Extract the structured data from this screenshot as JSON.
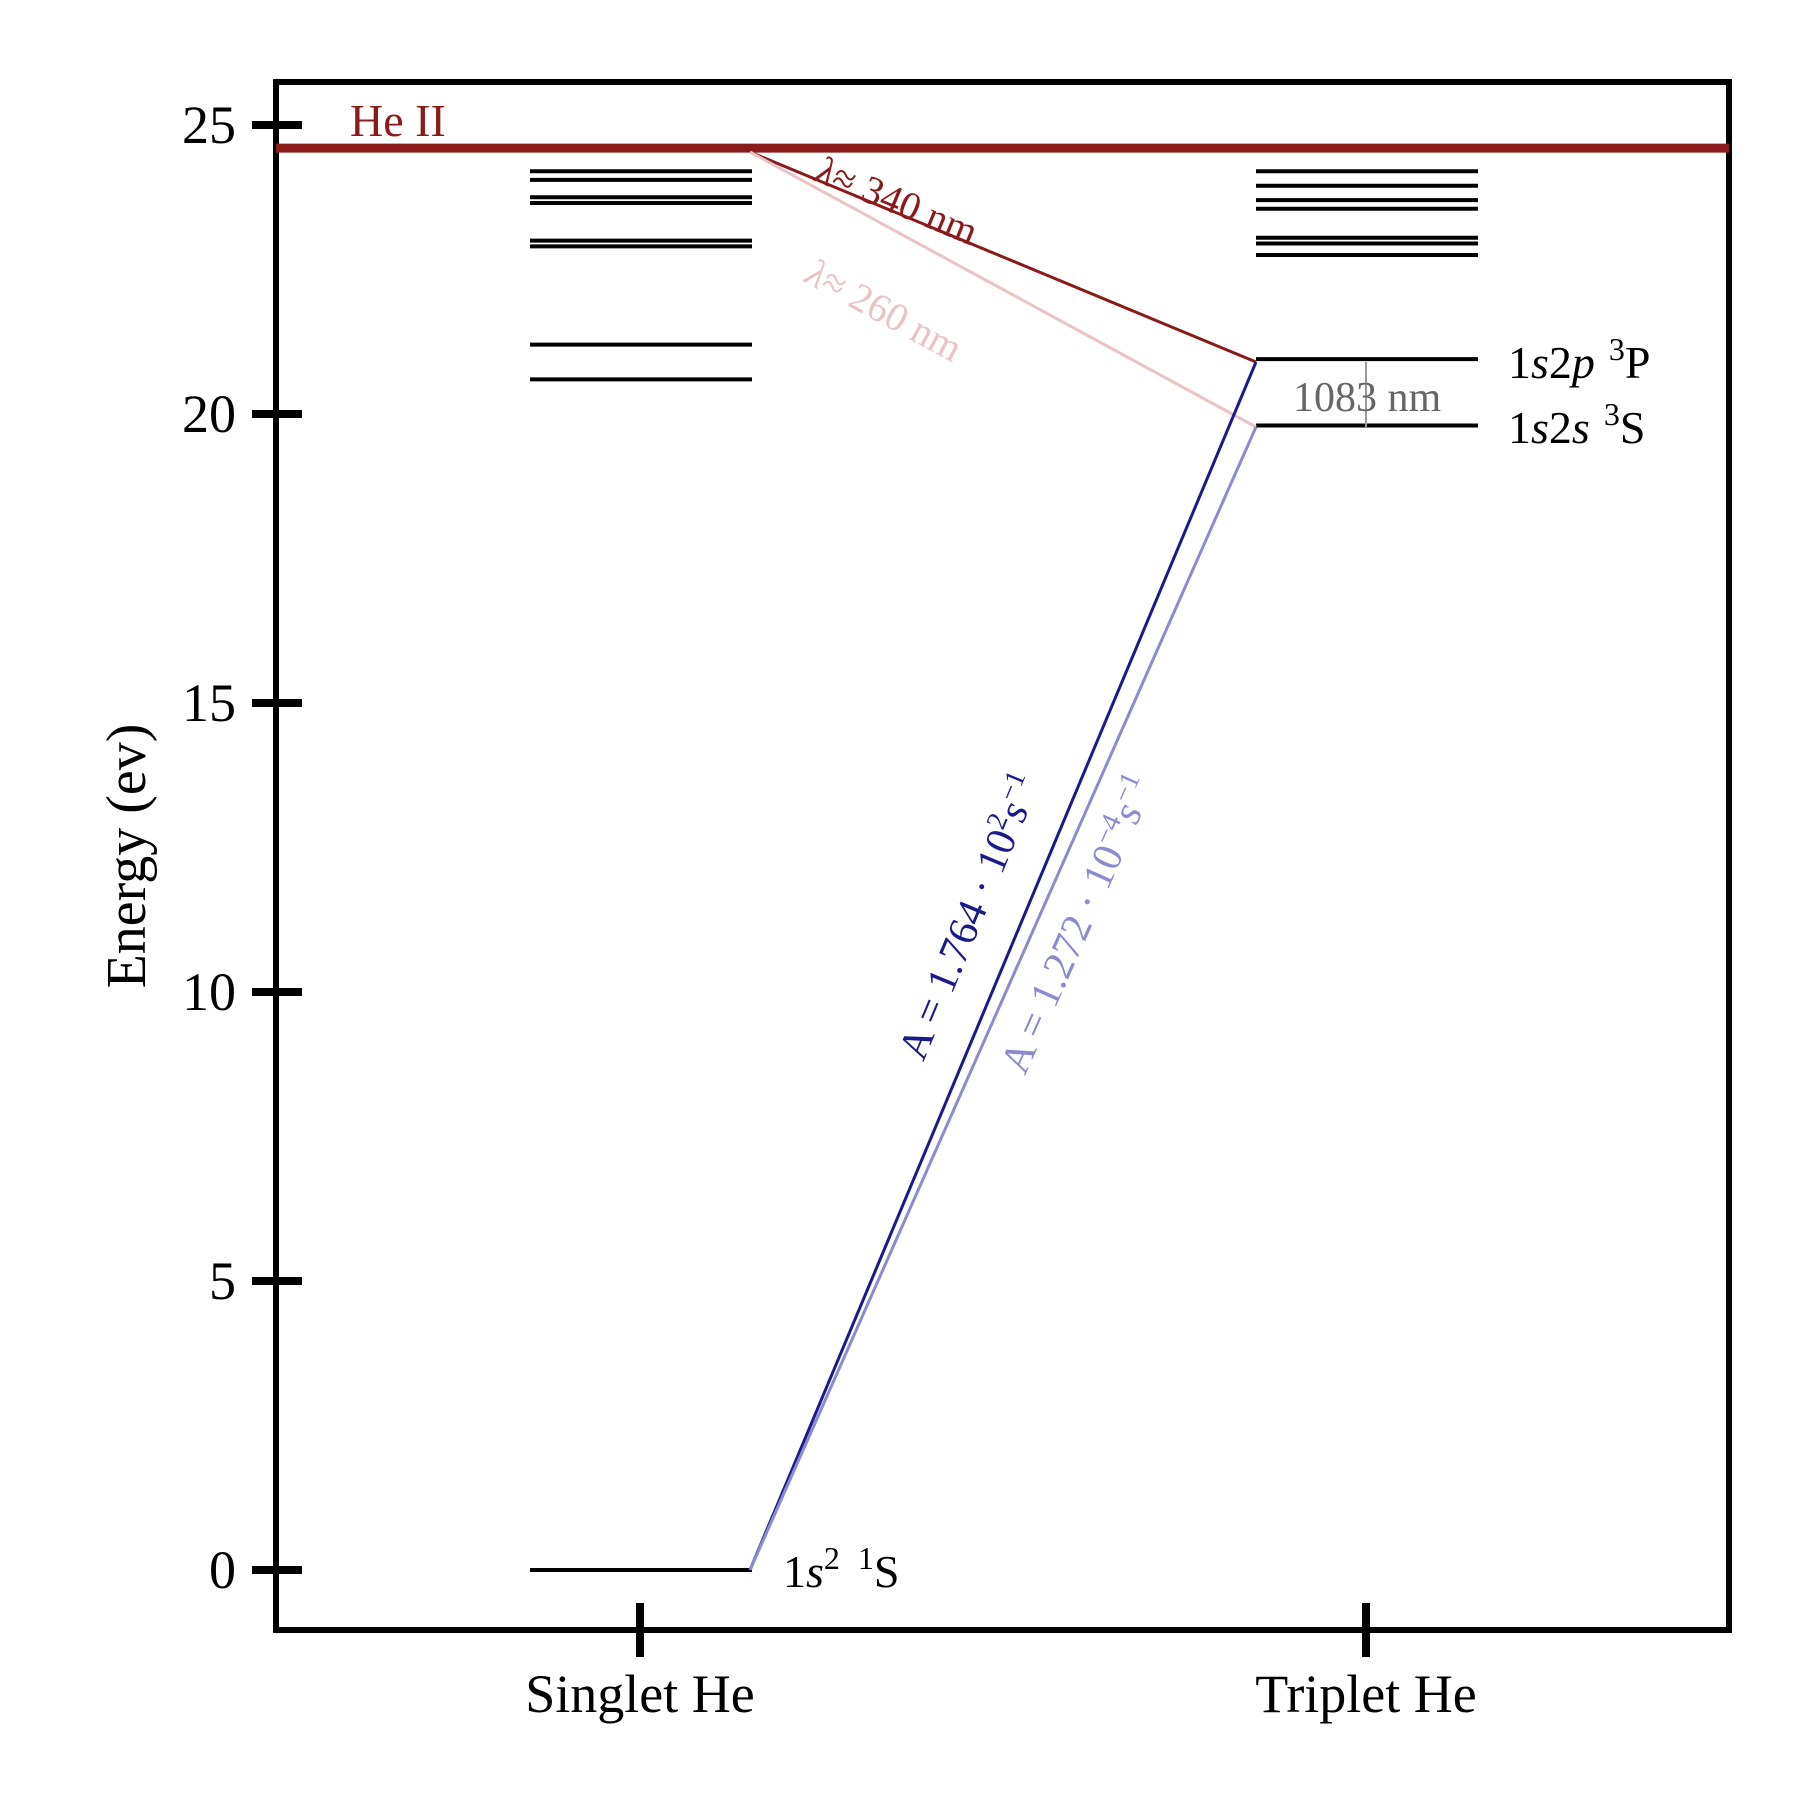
{
  "diagram": {
    "y_axis": {
      "label": "Energy  (ev)",
      "ticks": [
        0,
        5,
        10,
        15,
        20,
        25
      ],
      "range": [
        -1,
        26
      ]
    },
    "x_axis": {
      "categories": [
        "Singlet He",
        "Triplet He"
      ]
    },
    "ionization": {
      "label": "He II",
      "energy": 24.6,
      "color": "#8b1a1a"
    },
    "singlet_levels": [
      0,
      20.6,
      21.2,
      22.9,
      23.0,
      23.65,
      23.75,
      24.05,
      24.2
    ],
    "triplet_levels": [
      19.8,
      20.95,
      22.75,
      22.95,
      23.05,
      23.55,
      23.7,
      23.95,
      24.2
    ],
    "level_labels": {
      "ground": {
        "main": "1",
        "s": "s",
        "sup2": "2",
        "sup1": "1",
        "term": "S"
      },
      "triplet_p": {
        "main": "1",
        "s": "s",
        "two": "2",
        "p": "p",
        "sup3": "3",
        "term": "P"
      },
      "triplet_s": {
        "main": "1",
        "s1": "s",
        "two": "2",
        "s2": "s",
        "sup3": "3",
        "term": "S"
      }
    },
    "transitions": {
      "photo_340": {
        "lambda": "λ",
        "text": "≈ 340 nm",
        "color": "#8b1a1a"
      },
      "photo_260": {
        "lambda": "λ",
        "text": "≈ 260 nm",
        "color": "#e8c4c4"
      },
      "line_1083": {
        "text": "1083 nm",
        "color": "#666666"
      },
      "decay_p": {
        "text": "A = 1.764 · 10",
        "exp": "2",
        "unit": "s",
        "unit_exp": "−1",
        "color": "#1a1a8c"
      },
      "decay_s": {
        "text": "A = 1.272 · 10",
        "exp": "−4",
        "unit": "s",
        "unit_exp": "−1",
        "color": "#8a8ccf"
      }
    }
  }
}
